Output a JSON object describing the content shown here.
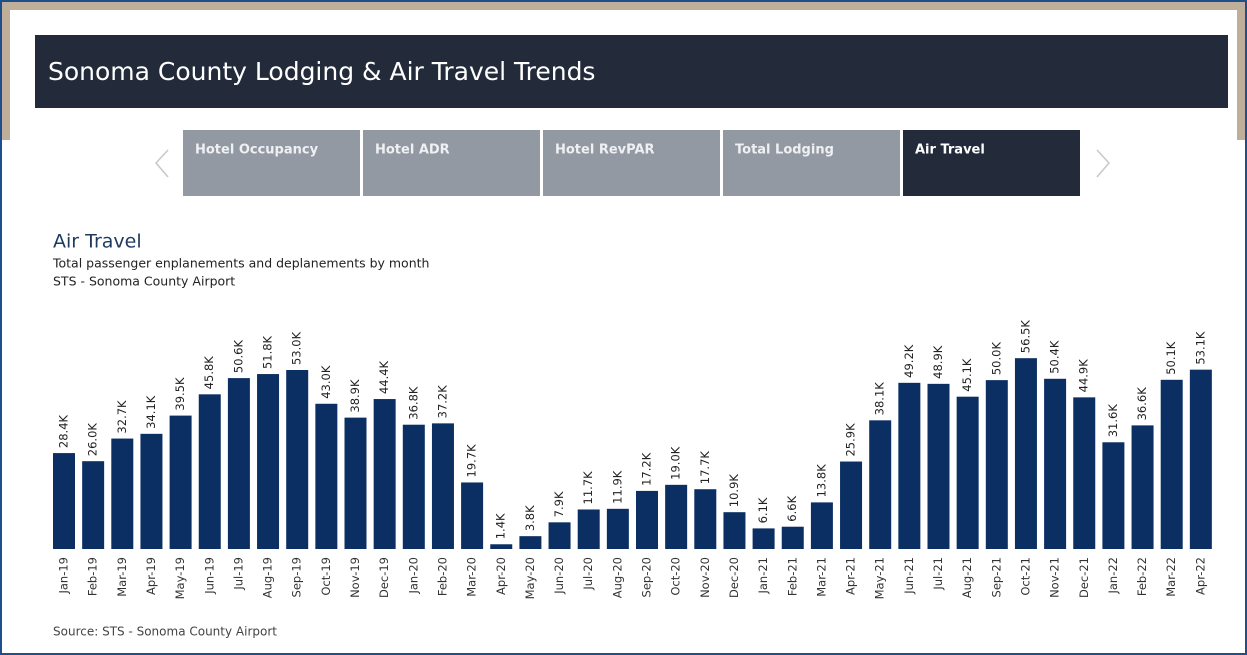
{
  "header": {
    "title": "Sonoma County Lodging & Air Travel Trends"
  },
  "tabs": [
    "Hotel Occupancy",
    "Hotel ADR",
    "Hotel RevPAR",
    "Total Lodging",
    "Air Travel"
  ],
  "active_tab": 4,
  "chart_data": {
    "type": "bar",
    "title": "Air Travel",
    "subtitle": [
      "Total passenger enplanements and deplanements by month",
      "STS - Sonoma County Airport"
    ],
    "color": "#0b2f63",
    "categories": [
      "Jan-19",
      "Feb-19",
      "Mar-19",
      "Apr-19",
      "May-19",
      "Jun-19",
      "Jul-19",
      "Aug-19",
      "Sep-19",
      "Oct-19",
      "Nov-19",
      "Dec-19",
      "Jan-20",
      "Feb-20",
      "Mar-20",
      "Apr-20",
      "May-20",
      "Jun-20",
      "Jul-20",
      "Aug-20",
      "Sep-20",
      "Oct-20",
      "Nov-20",
      "Dec-20",
      "Jan-21",
      "Feb-21",
      "Mar-21",
      "Apr-21",
      "May-21",
      "Jun-21",
      "Jul-21",
      "Aug-21",
      "Sep-21",
      "Oct-21",
      "Nov-21",
      "Dec-21",
      "Jan-22",
      "Feb-22",
      "Mar-22",
      "Apr-22"
    ],
    "values": [
      28400,
      26000,
      32700,
      34100,
      39500,
      45800,
      50600,
      51800,
      53000,
      43000,
      38900,
      44400,
      36800,
      37200,
      19700,
      1400,
      3800,
      7900,
      11700,
      11900,
      17200,
      19000,
      17700,
      10900,
      6100,
      6600,
      13800,
      25900,
      38100,
      49200,
      48900,
      45100,
      50000,
      56500,
      50400,
      44900,
      31600,
      36600,
      50100,
      53100
    ],
    "value_labels": [
      "28.4K",
      "26.0K",
      "32.7K",
      "34.1K",
      "39.5K",
      "45.8K",
      "50.6K",
      "51.8K",
      "53.0K",
      "43.0K",
      "38.9K",
      "44.4K",
      "36.8K",
      "37.2K",
      "19.7K",
      "1.4K",
      "3.8K",
      "7.9K",
      "11.7K",
      "11.9K",
      "17.2K",
      "19.0K",
      "17.7K",
      "10.9K",
      "6.1K",
      "6.6K",
      "13.8K",
      "25.9K",
      "38.1K",
      "49.2K",
      "48.9K",
      "45.1K",
      "50.0K",
      "56.5K",
      "50.4K",
      "44.9K",
      "31.6K",
      "36.6K",
      "50.1K",
      "53.1K"
    ],
    "source": "Source: STS - Sonoma County Airport"
  }
}
